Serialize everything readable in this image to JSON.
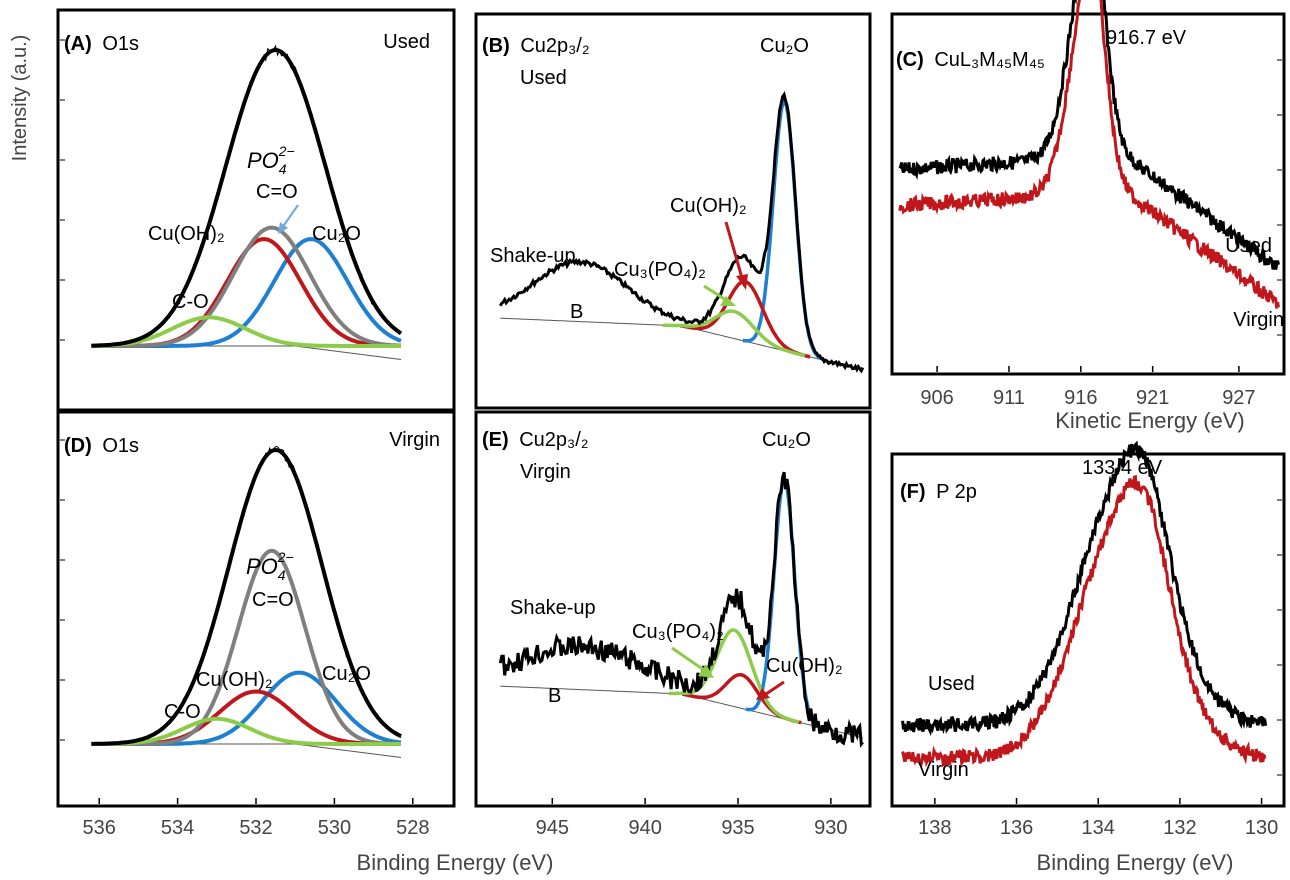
{
  "figure": {
    "ylabel": "Intensity (a.u.)",
    "xlabel_binding": "Binding Energy (eV)",
    "colors": {
      "total": "#000000",
      "cu2o": "#1f7fd1",
      "cuoh2": "#c0171c",
      "po4": "#7f7f7f",
      "co": "#8ccc4a",
      "cu3po42": "#8ccc4a",
      "background": "#555555",
      "used": "#000000",
      "virgin": "#c0171c"
    }
  },
  "chart_data": [
    {
      "id": "A",
      "type": "line",
      "label_prefix": "(A)",
      "label": "O1s",
      "condition": "Used",
      "xlim": [
        537,
        527
      ],
      "xticks": [
        536,
        534,
        532,
        530,
        528
      ],
      "peaks": [
        {
          "name": "Cu₂O",
          "center": 530.6,
          "height": 0.56,
          "fwhm": 2.2,
          "color_key": "cu2o"
        },
        {
          "name": "Cu(OH)₂",
          "center": 531.8,
          "height": 0.56,
          "fwhm": 2.2,
          "color_key": "cuoh2"
        },
        {
          "name": "PO₄²⁻ / C=O",
          "center": 531.6,
          "height": 0.62,
          "fwhm": 2.3,
          "color_key": "po4"
        },
        {
          "name": "C-O",
          "center": 533.2,
          "height": 0.15,
          "fwhm": 2.2,
          "color_key": "co"
        }
      ],
      "envelope": {
        "center": 531.5,
        "height": 1.55,
        "fwhm": 3.0
      },
      "annotations": [
        "Cu(OH)₂",
        "C=O",
        "Cu₂O",
        "C-O"
      ],
      "annotation_pieces": {
        "po4_base": "PO",
        "po4_sub": "4",
        "po4_sup": "2−"
      }
    },
    {
      "id": "B",
      "type": "line",
      "label_prefix": "(B)",
      "label": "Cu2p₃/₂",
      "condition": "Used",
      "xlim": [
        949,
        928
      ],
      "xticks": [
        945,
        940,
        935,
        930
      ],
      "peaks": [
        {
          "name": "Cu₂O",
          "center": 932.5,
          "height": 0.92,
          "fwhm": 1.4,
          "color_key": "cu2o"
        },
        {
          "name": "Cu(OH)₂",
          "center": 934.6,
          "height": 0.22,
          "fwhm": 2.2,
          "color_key": "cuoh2"
        },
        {
          "name": "Cu₃(PO₄)₂",
          "center": 935.2,
          "height": 0.1,
          "fwhm": 2.4,
          "color_key": "cu3po42"
        }
      ],
      "satellite": {
        "name": "B",
        "center": 943.5,
        "height": 0.22,
        "fwhm": 6.0
      },
      "annotations": [
        "Shake-up",
        "B",
        "Cu₃(PO₄)₂",
        "Cu(OH)₂",
        "Cu₂O"
      ]
    },
    {
      "id": "C",
      "type": "line",
      "label_prefix": "(C)",
      "label": "CuL₃M₄₅M₄₅",
      "peak_label": "916.7 eV",
      "xlabel": "Kinetic Energy (eV)",
      "xlim": [
        903,
        930
      ],
      "xticks": [
        906,
        911,
        916,
        921,
        927
      ],
      "series": [
        {
          "name": "Used",
          "color_key": "used",
          "peak": 916.7,
          "offset": 0.1
        },
        {
          "name": "Virgin",
          "color_key": "virgin",
          "peak": 916.7,
          "offset": 0.0
        }
      ]
    },
    {
      "id": "D",
      "type": "line",
      "label_prefix": "(D)",
      "label": "O1s",
      "condition": "Virgin",
      "xlim": [
        537,
        527
      ],
      "xticks": [
        536,
        534,
        532,
        530,
        528
      ],
      "peaks": [
        {
          "name": "Cu₂O",
          "center": 530.9,
          "height": 0.34,
          "fwhm": 2.2,
          "color_key": "cu2o"
        },
        {
          "name": "Cu(OH)₂",
          "center": 532.0,
          "height": 0.25,
          "fwhm": 2.2,
          "color_key": "cuoh2"
        },
        {
          "name": "PO₄²⁻ / C=O",
          "center": 531.6,
          "height": 0.92,
          "fwhm": 2.0,
          "color_key": "po4"
        },
        {
          "name": "C-O",
          "center": 533.0,
          "height": 0.12,
          "fwhm": 2.0,
          "color_key": "co"
        }
      ],
      "envelope": {
        "center": 531.5,
        "height": 1.4,
        "fwhm": 2.8
      },
      "annotations": [
        "Cu(OH)₂",
        "C=O",
        "Cu₂O",
        "C-O"
      ],
      "annotation_pieces": {
        "po4_base": "PO",
        "po4_sub": "4",
        "po4_sup": "2−"
      }
    },
    {
      "id": "E",
      "type": "line",
      "label_prefix": "(E)",
      "label": "Cu2p₃/₂",
      "condition": "Virgin",
      "xlim": [
        949,
        928
      ],
      "xticks": [
        945,
        940,
        935,
        930
      ],
      "peaks": [
        {
          "name": "Cu₂O",
          "center": 932.5,
          "height": 1.0,
          "fwhm": 1.3,
          "color_key": "cu2o"
        },
        {
          "name": "Cu(OH)₂",
          "center": 934.8,
          "height": 0.14,
          "fwhm": 2.0,
          "color_key": "cuoh2"
        },
        {
          "name": "Cu₃(PO₄)₂",
          "center": 935.2,
          "height": 0.32,
          "fwhm": 2.2,
          "color_key": "cu3po42"
        }
      ],
      "satellite": {
        "name": "B",
        "center": 943.5,
        "height": 0.18,
        "fwhm": 8.0
      },
      "annotations": [
        "Shake-up",
        "B",
        "Cu₃(PO₄)₂",
        "Cu(OH)₂",
        "Cu₂O"
      ]
    },
    {
      "id": "F",
      "type": "line",
      "label_prefix": "(F)",
      "label": "P 2p",
      "peak_label": "133.4 eV",
      "xlim": [
        139,
        129.5
      ],
      "xticks": [
        138,
        136,
        134,
        132,
        130
      ],
      "series": [
        {
          "name": "Used",
          "color_key": "used",
          "peak": 133.4,
          "offset": 0.1
        },
        {
          "name": "Virgin",
          "color_key": "virgin",
          "peak": 133.4,
          "offset": 0.0
        }
      ]
    }
  ]
}
